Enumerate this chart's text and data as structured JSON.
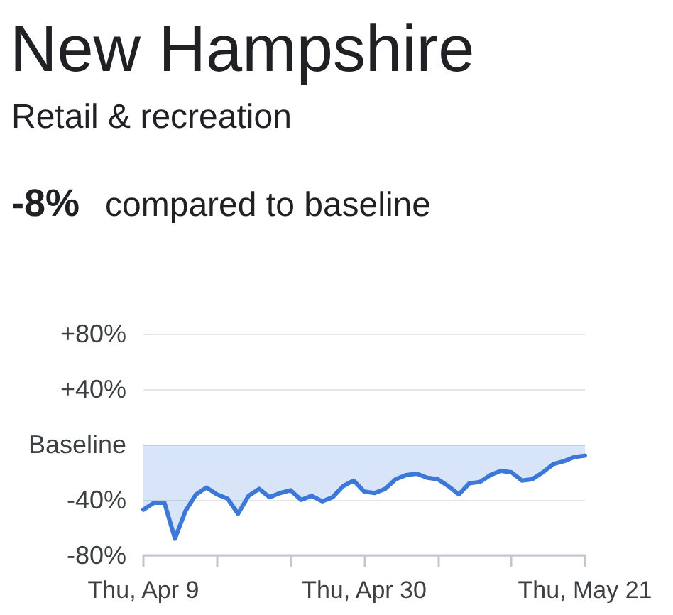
{
  "chart_data": {
    "type": "area",
    "title": "New Hampshire",
    "subtitle": "Retail & recreation",
    "annotations": [
      "-8%",
      "compared to baseline"
    ],
    "x": [
      "--04-09",
      "--04-10",
      "--04-11",
      "--04-12",
      "--04-13",
      "--04-14",
      "--04-15",
      "--04-16",
      "--04-17",
      "--04-18",
      "--04-19",
      "--04-20",
      "--04-21",
      "--04-22",
      "--04-23",
      "--04-24",
      "--04-25",
      "--04-26",
      "--04-27",
      "--04-28",
      "--04-29",
      "--04-30",
      "--05-01",
      "--05-02",
      "--05-03",
      "--05-04",
      "--05-05",
      "--05-06",
      "--05-07",
      "--05-08",
      "--05-09",
      "--05-10",
      "--05-11",
      "--05-12",
      "--05-13",
      "--05-14",
      "--05-15",
      "--05-16",
      "--05-17",
      "--05-18",
      "--05-19",
      "--05-20",
      "--05-21"
    ],
    "values": [
      -47,
      -42,
      -42,
      -68,
      -48,
      -36,
      -31,
      -36,
      -39,
      -50,
      -37,
      -32,
      -38,
      -35,
      -33,
      -40,
      -37,
      -41,
      -38,
      -30,
      -26,
      -34,
      -35,
      -32,
      -25,
      -22,
      -21,
      -24,
      -25,
      -30,
      -36,
      -28,
      -27,
      -22,
      -19,
      -20,
      -26,
      -25,
      -20,
      -14,
      -12,
      -9,
      -8
    ],
    "color": "#3c78d8",
    "xlim": [
      "--04-09",
      "--05-21"
    ],
    "xticks": [
      {
        "value": "--04-09",
        "label": "Thu, Apr 9"
      },
      {
        "value": "--04-16",
        "label": null
      },
      {
        "value": "--04-23",
        "label": null
      },
      {
        "value": "--04-30",
        "label": "Thu, Apr 30"
      },
      {
        "value": "--05-07",
        "label": null
      },
      {
        "value": "--05-14",
        "label": null
      },
      {
        "value": "--05-21",
        "label": "Thu, May 21"
      }
    ],
    "ylim": [
      -80,
      80
    ],
    "yticks": [
      {
        "value": -80,
        "label": "-80%"
      },
      {
        "value": -40,
        "label": "-40%"
      },
      {
        "value": 0,
        "label": "Baseline"
      },
      {
        "value": 40,
        "label": "+40%"
      },
      {
        "value": 80,
        "label": "+80%"
      }
    ],
    "grid": "y",
    "marker": "none",
    "line_style": "solid"
  }
}
